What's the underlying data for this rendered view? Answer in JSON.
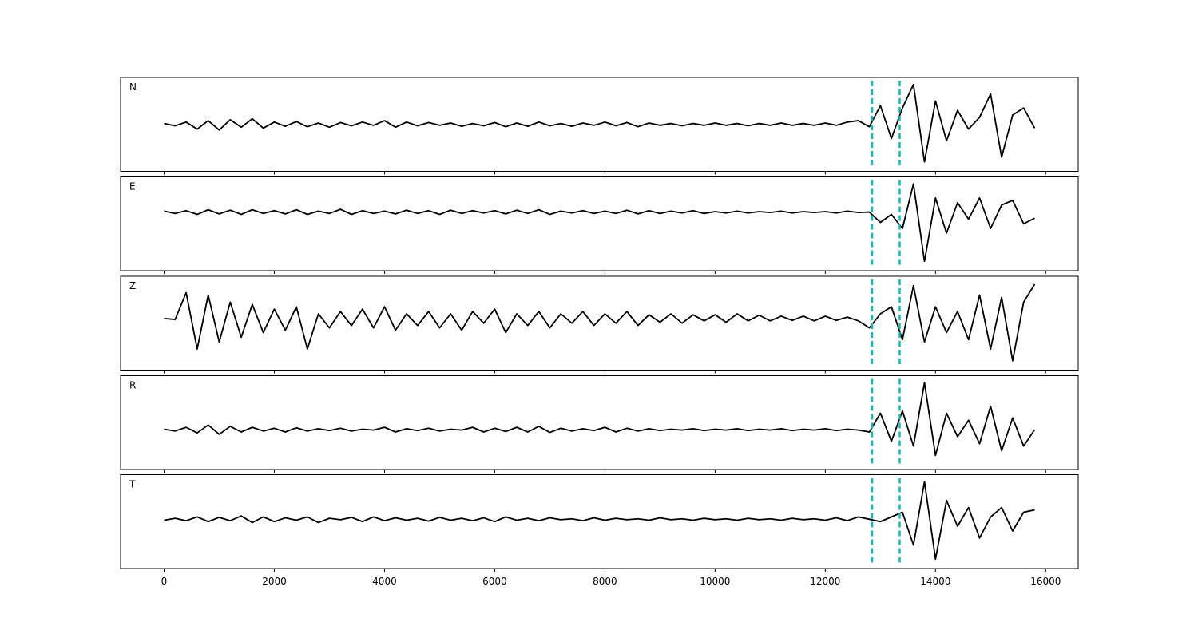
{
  "chart_data": [
    {
      "type": "line",
      "title": "N",
      "color": "#000000",
      "vlines": [
        12850,
        13350
      ],
      "vline_color": "#00c0c0",
      "xlim": [
        -790,
        16590
      ],
      "ylim": [
        -1,
        1
      ],
      "xticks": [
        0,
        2000,
        4000,
        6000,
        8000,
        10000,
        12000,
        14000,
        16000
      ],
      "x": [
        0,
        200,
        400,
        600,
        800,
        1000,
        1200,
        1400,
        1600,
        1800,
        2000,
        2200,
        2400,
        2600,
        2800,
        3000,
        3200,
        3400,
        3600,
        3800,
        4000,
        4200,
        4400,
        4600,
        4800,
        5000,
        5200,
        5400,
        5600,
        5800,
        6000,
        6200,
        6400,
        6600,
        6800,
        7000,
        7200,
        7400,
        7600,
        7800,
        8000,
        8200,
        8400,
        8600,
        8800,
        9000,
        9200,
        9400,
        9600,
        9800,
        10000,
        10200,
        10400,
        10600,
        10800,
        11000,
        11200,
        11400,
        11600,
        11800,
        12000,
        12200,
        12400,
        12600,
        12800,
        13000,
        13200,
        13400,
        13600,
        13800,
        14000,
        14200,
        14400,
        14600,
        14800,
        15000,
        15200,
        15400,
        15600,
        15800
      ],
      "values": [
        0.02,
        -0.03,
        0.05,
        -0.1,
        0.08,
        -0.12,
        0.1,
        -0.06,
        0.12,
        -0.08,
        0.05,
        -0.04,
        0.06,
        -0.05,
        0.03,
        -0.06,
        0.04,
        -0.03,
        0.05,
        -0.02,
        0.08,
        -0.06,
        0.05,
        -0.03,
        0.04,
        -0.02,
        0.03,
        -0.04,
        0.02,
        -0.03,
        0.04,
        -0.05,
        0.03,
        -0.04,
        0.05,
        -0.03,
        0.02,
        -0.04,
        0.03,
        -0.02,
        0.05,
        -0.03,
        0.04,
        -0.05,
        0.03,
        -0.02,
        0.02,
        -0.03,
        0.02,
        -0.02,
        0.03,
        -0.02,
        0.02,
        -0.03,
        0.02,
        -0.02,
        0.03,
        -0.02,
        0.02,
        -0.02,
        0.03,
        -0.02,
        0.05,
        0.08,
        -0.05,
        0.4,
        -0.3,
        0.35,
        0.85,
        -0.8,
        0.5,
        -0.35,
        0.3,
        -0.1,
        0.15,
        0.65,
        -0.7,
        0.2,
        0.35,
        -0.08
      ]
    },
    {
      "type": "line",
      "title": "E",
      "color": "#000000",
      "vlines": [
        12850,
        13350
      ],
      "vline_color": "#00c0c0",
      "xlim": [
        -790,
        16590
      ],
      "ylim": [
        -1,
        1
      ],
      "xticks": [
        0,
        2000,
        4000,
        6000,
        8000,
        10000,
        12000,
        14000,
        16000
      ],
      "x": [
        0,
        200,
        400,
        600,
        800,
        1000,
        1200,
        1400,
        1600,
        1800,
        2000,
        2200,
        2400,
        2600,
        2800,
        3000,
        3200,
        3400,
        3600,
        3800,
        4000,
        4200,
        4400,
        4600,
        4800,
        5000,
        5200,
        5400,
        5600,
        5800,
        6000,
        6200,
        6400,
        6600,
        6800,
        7000,
        7200,
        7400,
        7600,
        7800,
        8000,
        8200,
        8400,
        8600,
        8800,
        9000,
        9200,
        9400,
        9600,
        9800,
        10000,
        10200,
        10400,
        10600,
        10800,
        11000,
        11200,
        11400,
        11600,
        11800,
        12000,
        12200,
        12400,
        12600,
        12800,
        13000,
        13200,
        13400,
        13600,
        13800,
        14000,
        14200,
        14400,
        14600,
        14800,
        15000,
        15200,
        15400,
        15600,
        15800
      ],
      "values": [
        0.27,
        0.22,
        0.28,
        0.2,
        0.3,
        0.21,
        0.29,
        0.2,
        0.3,
        0.22,
        0.28,
        0.21,
        0.3,
        0.2,
        0.27,
        0.22,
        0.31,
        0.2,
        0.28,
        0.22,
        0.27,
        0.21,
        0.29,
        0.22,
        0.28,
        0.2,
        0.29,
        0.22,
        0.28,
        0.23,
        0.28,
        0.21,
        0.29,
        0.22,
        0.3,
        0.2,
        0.27,
        0.23,
        0.28,
        0.22,
        0.27,
        0.22,
        0.29,
        0.21,
        0.28,
        0.22,
        0.27,
        0.23,
        0.28,
        0.22,
        0.26,
        0.23,
        0.27,
        0.23,
        0.26,
        0.24,
        0.27,
        0.23,
        0.26,
        0.24,
        0.26,
        0.23,
        0.27,
        0.24,
        0.25,
        0.03,
        0.2,
        -0.1,
        0.85,
        -0.8,
        0.55,
        -0.2,
        0.45,
        0.1,
        0.55,
        -0.1,
        0.4,
        0.5,
        0.0,
        0.12
      ]
    },
    {
      "type": "line",
      "title": "Z",
      "color": "#000000",
      "vlines": [
        12850,
        13350
      ],
      "vline_color": "#00c0c0",
      "xlim": [
        -790,
        16590
      ],
      "ylim": [
        -1,
        1
      ],
      "xticks": [
        0,
        2000,
        4000,
        6000,
        8000,
        10000,
        12000,
        14000,
        16000
      ],
      "x": [
        0,
        200,
        400,
        600,
        800,
        1000,
        1200,
        1400,
        1600,
        1800,
        2000,
        2200,
        2400,
        2600,
        2800,
        3000,
        3200,
        3400,
        3600,
        3800,
        4000,
        4200,
        4400,
        4600,
        4800,
        5000,
        5200,
        5400,
        5600,
        5800,
        6000,
        6200,
        6400,
        6600,
        6800,
        7000,
        7200,
        7400,
        7600,
        7800,
        8000,
        8200,
        8400,
        8600,
        8800,
        9000,
        9200,
        9400,
        9600,
        9800,
        10000,
        10200,
        10400,
        10600,
        10800,
        11000,
        11200,
        11400,
        11600,
        11800,
        12000,
        12200,
        12400,
        12600,
        12800,
        13000,
        13200,
        13400,
        13600,
        13800,
        14000,
        14200,
        14400,
        14600,
        14800,
        15000,
        15200,
        15400,
        15600,
        15800
      ],
      "values": [
        0.1,
        0.08,
        0.65,
        -0.55,
        0.6,
        -0.4,
        0.45,
        -0.3,
        0.4,
        -0.2,
        0.3,
        -0.15,
        0.35,
        -0.55,
        0.2,
        -0.1,
        0.25,
        -0.05,
        0.3,
        -0.1,
        0.35,
        -0.15,
        0.2,
        -0.05,
        0.25,
        -0.1,
        0.2,
        -0.15,
        0.25,
        0.0,
        0.3,
        -0.2,
        0.2,
        -0.05,
        0.25,
        -0.1,
        0.2,
        0.0,
        0.25,
        -0.05,
        0.2,
        0.0,
        0.25,
        -0.05,
        0.18,
        0.02,
        0.2,
        0.0,
        0.18,
        0.05,
        0.18,
        0.02,
        0.2,
        0.05,
        0.17,
        0.05,
        0.15,
        0.06,
        0.15,
        0.05,
        0.15,
        0.06,
        0.13,
        0.05,
        -0.1,
        0.2,
        0.35,
        -0.35,
        0.8,
        -0.4,
        0.35,
        -0.2,
        0.25,
        -0.35,
        0.6,
        -0.55,
        0.55,
        -0.8,
        0.45,
        0.83
      ]
    },
    {
      "type": "line",
      "title": "R",
      "color": "#000000",
      "vlines": [
        12850,
        13350
      ],
      "vline_color": "#00c0c0",
      "xlim": [
        -790,
        16590
      ],
      "ylim": [
        -1,
        1
      ],
      "xticks": [
        0,
        2000,
        4000,
        6000,
        8000,
        10000,
        12000,
        14000,
        16000
      ],
      "x": [
        0,
        200,
        400,
        600,
        800,
        1000,
        1200,
        1400,
        1600,
        1800,
        2000,
        2200,
        2400,
        2600,
        2800,
        3000,
        3200,
        3400,
        3600,
        3800,
        4000,
        4200,
        4400,
        4600,
        4800,
        5000,
        5200,
        5400,
        5600,
        5800,
        6000,
        6200,
        6400,
        6600,
        6800,
        7000,
        7200,
        7400,
        7600,
        7800,
        8000,
        8200,
        8400,
        8600,
        8800,
        9000,
        9200,
        9400,
        9600,
        9800,
        10000,
        10200,
        10400,
        10600,
        10800,
        11000,
        11200,
        11400,
        11600,
        11800,
        12000,
        12200,
        12400,
        12600,
        12800,
        13000,
        13200,
        13400,
        13600,
        13800,
        14000,
        14200,
        14400,
        14600,
        14800,
        15000,
        15200,
        15400,
        15600,
        15800
      ],
      "values": [
        -0.14,
        -0.18,
        -0.1,
        -0.22,
        -0.05,
        -0.25,
        -0.08,
        -0.2,
        -0.1,
        -0.18,
        -0.12,
        -0.2,
        -0.11,
        -0.18,
        -0.13,
        -0.17,
        -0.12,
        -0.18,
        -0.14,
        -0.16,
        -0.1,
        -0.2,
        -0.13,
        -0.17,
        -0.12,
        -0.18,
        -0.14,
        -0.16,
        -0.1,
        -0.2,
        -0.12,
        -0.19,
        -0.1,
        -0.2,
        -0.08,
        -0.21,
        -0.12,
        -0.18,
        -0.13,
        -0.17,
        -0.1,
        -0.2,
        -0.12,
        -0.18,
        -0.13,
        -0.17,
        -0.14,
        -0.16,
        -0.13,
        -0.17,
        -0.14,
        -0.16,
        -0.13,
        -0.17,
        -0.14,
        -0.16,
        -0.13,
        -0.17,
        -0.14,
        -0.16,
        -0.13,
        -0.17,
        -0.14,
        -0.16,
        -0.2,
        0.2,
        -0.4,
        0.25,
        -0.5,
        0.85,
        -0.7,
        0.2,
        -0.3,
        0.05,
        -0.45,
        0.35,
        -0.6,
        0.1,
        -0.5,
        -0.15
      ]
    },
    {
      "type": "line",
      "title": "T",
      "color": "#000000",
      "vlines": [
        12850,
        13350
      ],
      "vline_color": "#00c0c0",
      "xlim": [
        -790,
        16590
      ],
      "ylim": [
        -1,
        1
      ],
      "xticks": [
        0,
        2000,
        4000,
        6000,
        8000,
        10000,
        12000,
        14000,
        16000
      ],
      "x": [
        0,
        200,
        400,
        600,
        800,
        1000,
        1200,
        1400,
        1600,
        1800,
        2000,
        2200,
        2400,
        2600,
        2800,
        3000,
        3200,
        3400,
        3600,
        3800,
        4000,
        4200,
        4400,
        4600,
        4800,
        5000,
        5200,
        5400,
        5600,
        5800,
        6000,
        6200,
        6400,
        6600,
        6800,
        7000,
        7200,
        7400,
        7600,
        7800,
        8000,
        8200,
        8400,
        8600,
        8800,
        9000,
        9200,
        9400,
        9600,
        9800,
        10000,
        10200,
        10400,
        10600,
        10800,
        11000,
        11200,
        11400,
        11600,
        11800,
        12000,
        12200,
        12400,
        12600,
        12800,
        13000,
        13200,
        13400,
        13600,
        13800,
        14000,
        14200,
        14400,
        14600,
        14800,
        15000,
        15200,
        15400,
        15600,
        15800
      ],
      "values": [
        0.03,
        0.07,
        0.02,
        0.1,
        0.0,
        0.09,
        0.02,
        0.12,
        -0.02,
        0.1,
        0.0,
        0.08,
        0.03,
        0.1,
        -0.02,
        0.07,
        0.04,
        0.09,
        0.0,
        0.1,
        0.02,
        0.08,
        0.03,
        0.07,
        0.01,
        0.09,
        0.03,
        0.07,
        0.02,
        0.08,
        0.0,
        0.1,
        0.03,
        0.07,
        0.02,
        0.08,
        0.04,
        0.06,
        0.02,
        0.08,
        0.03,
        0.07,
        0.04,
        0.06,
        0.03,
        0.08,
        0.04,
        0.06,
        0.03,
        0.07,
        0.04,
        0.06,
        0.03,
        0.07,
        0.04,
        0.06,
        0.03,
        0.07,
        0.04,
        0.06,
        0.03,
        0.08,
        0.02,
        0.1,
        0.05,
        0.0,
        0.1,
        0.2,
        -0.5,
        0.85,
        -0.8,
        0.45,
        -0.1,
        0.3,
        -0.35,
        0.1,
        0.3,
        -0.2,
        0.2,
        0.25
      ]
    }
  ]
}
